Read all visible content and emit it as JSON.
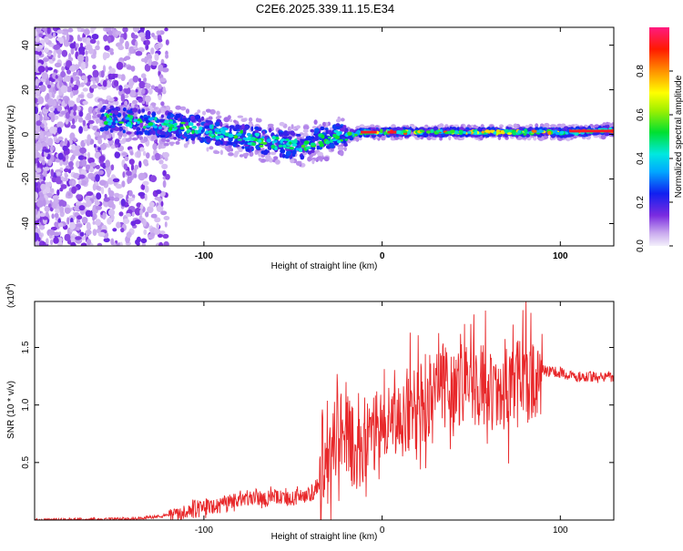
{
  "title": "C2E6.2025.339.11.15.E34",
  "chart_data": [
    {
      "type": "heatmap",
      "name": "spectrogram",
      "xlabel": "Height of straight line (km)",
      "ylabel": "Frequency (Hz)",
      "xlim": [
        -195,
        130
      ],
      "ylim": [
        -50,
        48
      ],
      "xticks": [
        -100,
        0,
        100
      ],
      "xtick_labels": [
        "-100",
        "0",
        "100"
      ],
      "yticks": [
        -40,
        -20,
        0,
        20,
        40
      ],
      "ytick_labels": [
        "-40",
        "-20",
        "0",
        "20",
        "40"
      ],
      "colorbar": {
        "label": "Normalized spectral amplitude",
        "range": [
          0,
          1
        ],
        "ticks": [
          0.0,
          0.2,
          0.4,
          0.6,
          0.8
        ],
        "tick_labels": [
          "0.0",
          "0.2",
          "0.4",
          "0.6",
          "0.8"
        ]
      },
      "ridge": {
        "x": [
          -155,
          -140,
          -120,
          -100,
          -80,
          -60,
          -45,
          -35,
          -25,
          -20,
          -15,
          -10,
          -5,
          0,
          20,
          50,
          80,
          110,
          130
        ],
        "y": [
          7,
          6,
          4,
          2,
          -1,
          -4,
          -5,
          -3,
          -1,
          0,
          0,
          1,
          1,
          1,
          1,
          1,
          1,
          1,
          2
        ]
      }
    },
    {
      "type": "line",
      "name": "snr",
      "xlabel": "Height of straight line (km)",
      "ylabel": "SNR (10 * v/v)",
      "y_multiplier_label": "(x10",
      "y_multiplier_exp": "4",
      "y_multiplier_close": ")",
      "xlim": [
        -195,
        130
      ],
      "ylim": [
        0,
        1.9
      ],
      "xticks": [
        -100,
        0,
        100
      ],
      "xtick_labels": [
        "-100",
        "0",
        "100"
      ],
      "yticks": [
        0.5,
        1.0,
        1.5
      ],
      "ytick_labels": [
        "0.5",
        "1.0",
        "1.5"
      ],
      "color": "#e8282a",
      "envelope": {
        "x": [
          -195,
          -140,
          -120,
          -100,
          -80,
          -60,
          -40,
          -32,
          -28,
          -25,
          -22,
          -18,
          -15,
          -10,
          0,
          10,
          20,
          30,
          40,
          50,
          60,
          70,
          80,
          90,
          100,
          110,
          120,
          130
        ],
        "y": [
          0.0,
          0.01,
          0.04,
          0.1,
          0.17,
          0.2,
          0.22,
          0.35,
          0.6,
          0.8,
          0.8,
          0.7,
          0.55,
          0.7,
          0.8,
          0.9,
          1.0,
          1.15,
          1.2,
          1.2,
          1.15,
          1.15,
          1.2,
          1.3,
          1.28,
          1.25,
          1.24,
          1.25
        ]
      }
    }
  ]
}
